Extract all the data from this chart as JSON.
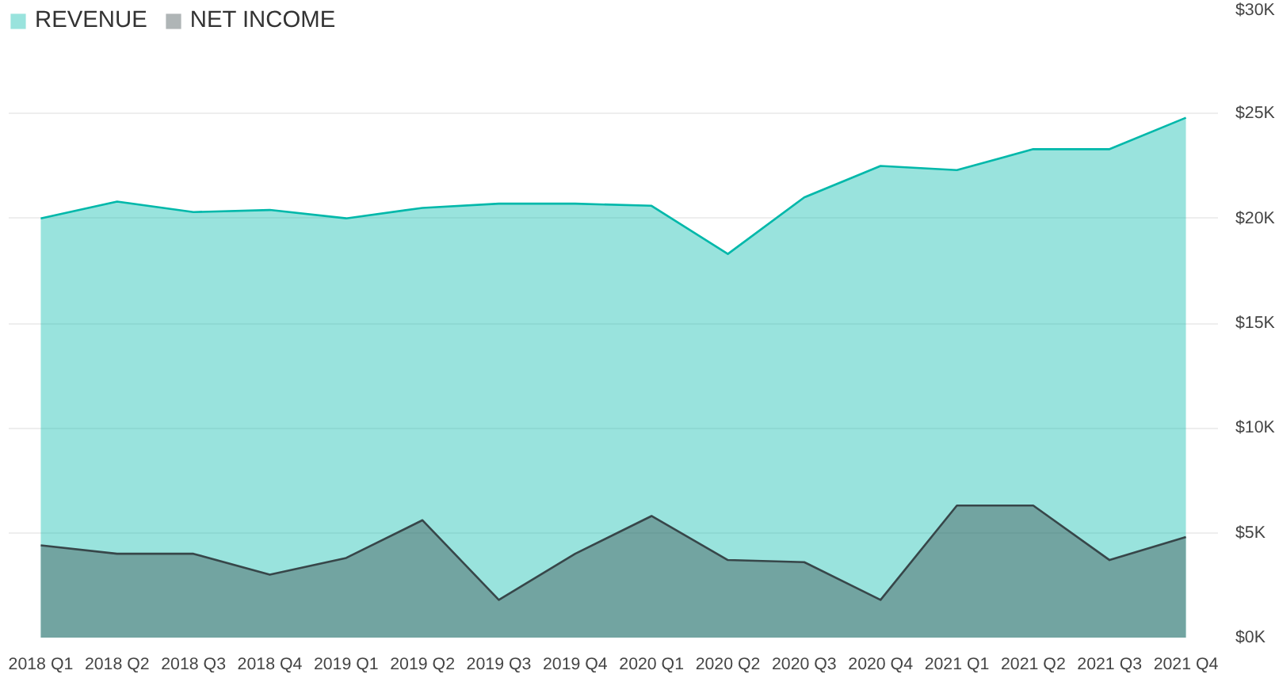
{
  "chart_data": {
    "type": "area",
    "categories": [
      "2018 Q1",
      "2018 Q2",
      "2018 Q3",
      "2018 Q4",
      "2019 Q1",
      "2019 Q2",
      "2019 Q3",
      "2019 Q4",
      "2020 Q1",
      "2020 Q2",
      "2020 Q3",
      "2020 Q4",
      "2021 Q1",
      "2021 Q2",
      "2021 Q3",
      "2021 Q4"
    ],
    "series": [
      {
        "name": "REVENUE",
        "color": "#01b8aa",
        "values": [
          20.0,
          20.8,
          20.3,
          20.4,
          20.0,
          20.5,
          20.7,
          20.7,
          20.6,
          18.3,
          21.0,
          22.5,
          22.3,
          23.3,
          23.3,
          24.8
        ]
      },
      {
        "name": "NET INCOME",
        "color": "#374649",
        "values": [
          4.4,
          4.0,
          4.0,
          3.0,
          3.8,
          5.6,
          1.8,
          4.0,
          5.8,
          3.7,
          3.6,
          1.8,
          6.3,
          6.3,
          3.7,
          4.8
        ]
      }
    ],
    "ylim": [
      0,
      30
    ],
    "yticks": [
      {
        "value": 0,
        "label": "$0K"
      },
      {
        "value": 5,
        "label": "$5K"
      },
      {
        "value": 10,
        "label": "$10K"
      },
      {
        "value": 15,
        "label": "$15K"
      },
      {
        "value": 20,
        "label": "$20K"
      },
      {
        "value": 25,
        "label": "$25K"
      },
      {
        "value": 30,
        "label": "$30K"
      }
    ],
    "grid": "y",
    "legend": "top left"
  }
}
